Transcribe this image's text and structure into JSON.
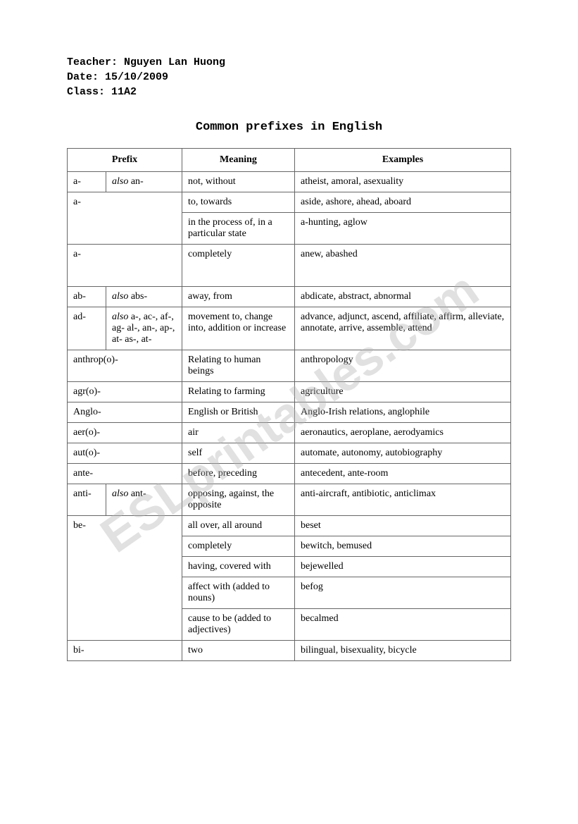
{
  "header": {
    "teacher_label": "Teacher:",
    "teacher_name": "Nguyen Lan Huong",
    "date_label": "Date:",
    "date_value": "15/10/2009",
    "class_label": "Class:",
    "class_value": "11A2"
  },
  "title": "Common prefixes in English",
  "watermark": "ESLprintables.com",
  "table": {
    "headers": {
      "prefix": "Prefix",
      "meaning": "Meaning",
      "examples": "Examples"
    },
    "rows": [
      {
        "prefix1": "a-",
        "prefix2_italic": "also",
        "prefix2_rest": " an-",
        "meaning": "not, without",
        "examples": "atheist, amoral, asexuality"
      },
      {
        "prefix1": "a-",
        "prefix1_rowspan": 2,
        "prefix1_colspan": 2,
        "meaning": "to, towards",
        "examples": "aside, ashore, ahead, aboard"
      },
      {
        "meaning": "in the process of, in a particular state",
        "examples": "a-hunting, aglow"
      },
      {
        "prefix1": "a-",
        "prefix1_colspan": 2,
        "meaning": "completely",
        "examples": "anew, abashed"
      },
      {
        "prefix1": "ab-",
        "prefix2_italic": "also",
        "prefix2_rest": " abs-",
        "meaning": "away, from",
        "examples": "abdicate, abstract, abnormal"
      },
      {
        "prefix1": "ad-",
        "prefix2_italic": "also",
        "prefix2_rest": " a-, ac-, af-, ag- al-, an-, ap-, at- as-, at-",
        "meaning": "movement to, change into, addition or increase",
        "examples": "advance, adjunct, ascend, affiliate, affirm, alleviate, annotate, arrive, assemble, attend"
      },
      {
        "prefix1": "anthrop(o)-",
        "prefix1_colspan": 2,
        "meaning": "Relating to human beings",
        "examples": "anthropology"
      },
      {
        "prefix1": "agr(o)-",
        "prefix1_colspan": 2,
        "meaning": "Relating to farming",
        "examples": "agriculture"
      },
      {
        "prefix1": "Anglo-",
        "prefix1_colspan": 2,
        "meaning": "English or British",
        "examples": "Anglo-Irish relations, anglophile"
      },
      {
        "prefix1": "aer(o)-",
        "prefix1_colspan": 2,
        "meaning": "air",
        "examples": "aeronautics, aeroplane, aerodyamics"
      },
      {
        "prefix1": "aut(o)-",
        "prefix1_colspan": 2,
        "meaning": "self",
        "examples": "automate, autonomy, autobiography"
      },
      {
        "prefix1": "ante-",
        "prefix1_colspan": 2,
        "meaning": "before, preceding",
        "examples": "antecedent, ante-room"
      },
      {
        "prefix1": "anti-",
        "prefix2_italic": "also",
        "prefix2_rest": " ant-",
        "meaning": "opposing, against, the opposite",
        "examples": "anti-aircraft, antibiotic, anticlimax"
      },
      {
        "prefix1": "be-",
        "prefix1_rowspan": 5,
        "prefix1_colspan": 2,
        "meaning": "all over, all around",
        "examples": "beset"
      },
      {
        "meaning": "completely",
        "examples": "bewitch, bemused"
      },
      {
        "meaning": "having, covered with",
        "examples": "bejewelled"
      },
      {
        "meaning": "affect with (added to nouns)",
        "examples": "befog"
      },
      {
        "meaning": "cause to be (added to adjectives)",
        "examples": "becalmed"
      },
      {
        "prefix1": "bi-",
        "prefix1_colspan": 2,
        "meaning": "two",
        "examples": "bilingual, bisexuality, bicycle"
      }
    ]
  }
}
